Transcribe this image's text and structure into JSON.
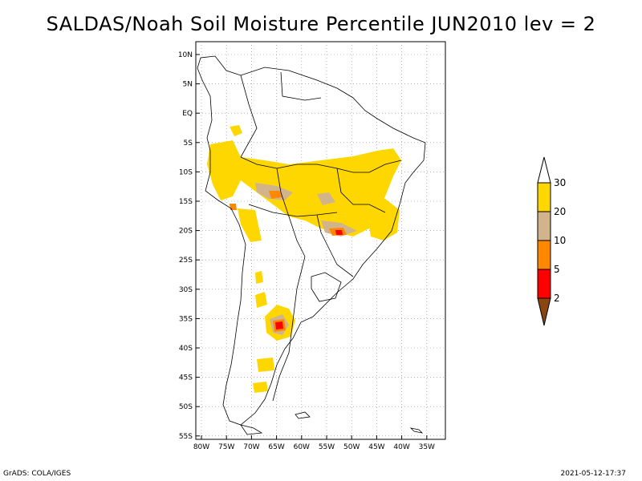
{
  "title": "SALDAS/Noah Soil Moisture Percentile JUN2010 lev = 2",
  "footer": {
    "left": "GrADS: COLA/IGES",
    "right": "2021-05-12-17:37"
  },
  "axes": {
    "lat_labels": [
      "10N",
      "5N",
      "EQ",
      "5S",
      "10S",
      "15S",
      "20S",
      "25S",
      "30S",
      "35S",
      "40S",
      "45S",
      "50S",
      "55S"
    ],
    "lon_labels": [
      "80W",
      "75W",
      "70W",
      "65W",
      "60W",
      "55W",
      "50W",
      "45W",
      "40W",
      "35W"
    ],
    "lat_range": [
      10,
      -55
    ],
    "lon_range": [
      -80,
      -35
    ],
    "grid": true
  },
  "colorbar": {
    "labels": [
      "2",
      "5",
      "10",
      "20",
      "30"
    ],
    "colors": {
      "below": "#8B4513",
      "bins": [
        "#ff0000",
        "#ff8800",
        "#d2b48c",
        "#ffd700"
      ],
      "above": "#ffffff"
    }
  }
}
